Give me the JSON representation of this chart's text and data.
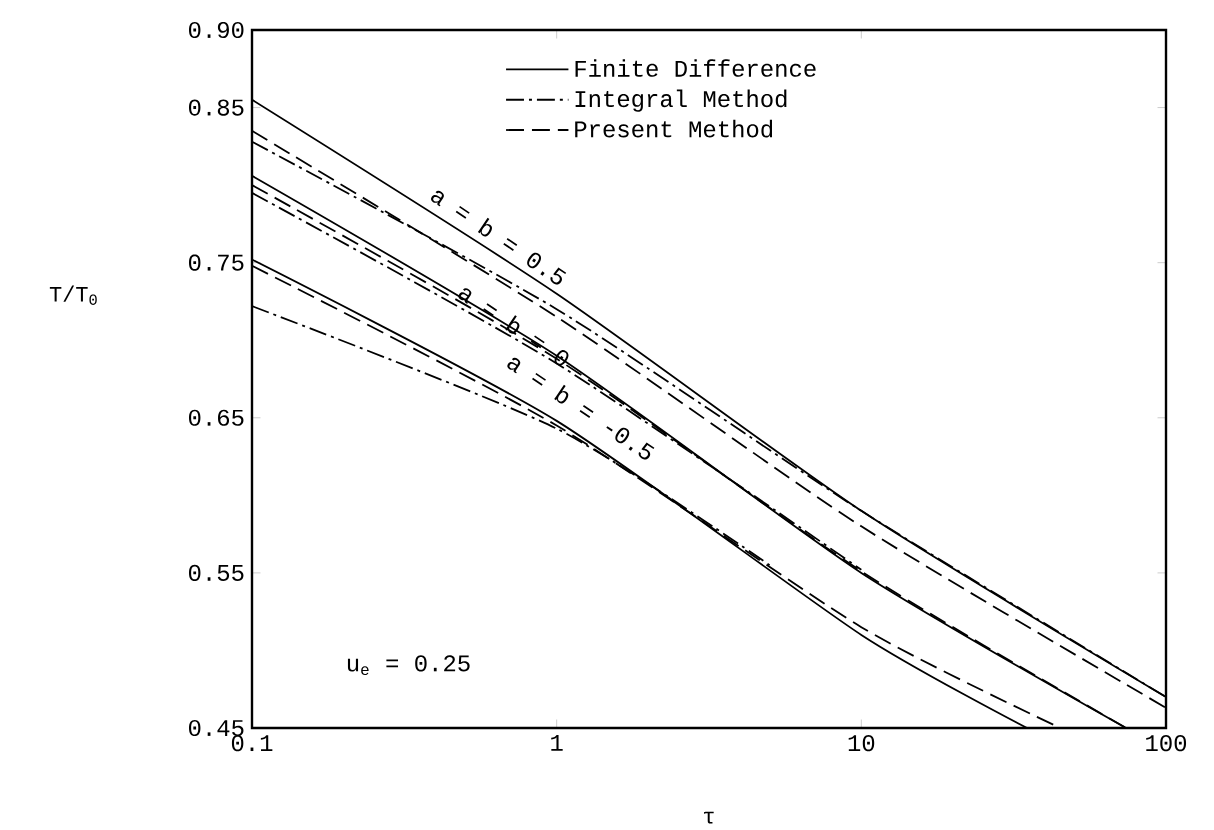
{
  "chart_data": {
    "type": "line",
    "xlabel": "τ",
    "ylabel": "T/T$_{0}$",
    "log": "x",
    "grid": false,
    "legend": "top",
    "marker": "none",
    "xlim": [
      0.1,
      100
    ],
    "ylim": [
      0.45,
      0.9
    ],
    "xticks": [
      0.1,
      1,
      10,
      100
    ],
    "yticks": [
      {
        "value": 0.9,
        "label": "0.90"
      },
      0.85,
      0.75,
      0.65,
      0.55,
      0.45
    ],
    "series": [
      {
        "name": "Finite Difference",
        "color": "#000000",
        "line_style": "solid",
        "x": [
          0.1,
          1,
          10,
          100
        ],
        "values": [
          0.855,
          0.73,
          0.59,
          0.47
        ]
      },
      {
        "name": "Integral Method",
        "color": "#000000",
        "line_style": "dashdot",
        "x": [
          0.1,
          1,
          10,
          100
        ],
        "values": [
          0.828,
          0.72,
          0.59,
          0.47
        ]
      },
      {
        "name": "Present Method",
        "color": "#000000",
        "line_style": "dashed",
        "x": [
          0.1,
          1,
          10,
          100
        ],
        "values": [
          0.835,
          0.715,
          0.58,
          0.463
        ]
      },
      {
        "color": "#000000",
        "line_style": "solid",
        "x": [
          0.1,
          1,
          10,
          74
        ],
        "values": [
          0.806,
          0.69,
          0.55,
          0.45
        ]
      },
      {
        "color": "#000000",
        "line_style": "dashdot",
        "x": [
          0.1,
          1,
          10
        ],
        "values": [
          0.795,
          0.685,
          0.552
        ]
      },
      {
        "color": "#000000",
        "line_style": "dashed",
        "x": [
          0.1,
          1,
          10,
          74
        ],
        "values": [
          0.8,
          0.688,
          0.551,
          0.45
        ]
      },
      {
        "color": "#000000",
        "line_style": "solid",
        "x": [
          0.1,
          1,
          10,
          35
        ],
        "values": [
          0.752,
          0.648,
          0.51,
          0.45
        ]
      },
      {
        "color": "#000000",
        "line_style": "dashdot",
        "x": [
          0.1,
          1,
          5
        ],
        "values": [
          0.722,
          0.643,
          0.555
        ]
      },
      {
        "color": "#000000",
        "line_style": "dashed",
        "x": [
          0.1,
          1,
          10,
          45
        ],
        "values": [
          0.748,
          0.645,
          0.515,
          0.45
        ]
      }
    ],
    "annotations": [
      "a = b = 0.5",
      "a = b = 0",
      "a = b = -0.5",
      "u$_{e}$ = 0.25"
    ]
  }
}
